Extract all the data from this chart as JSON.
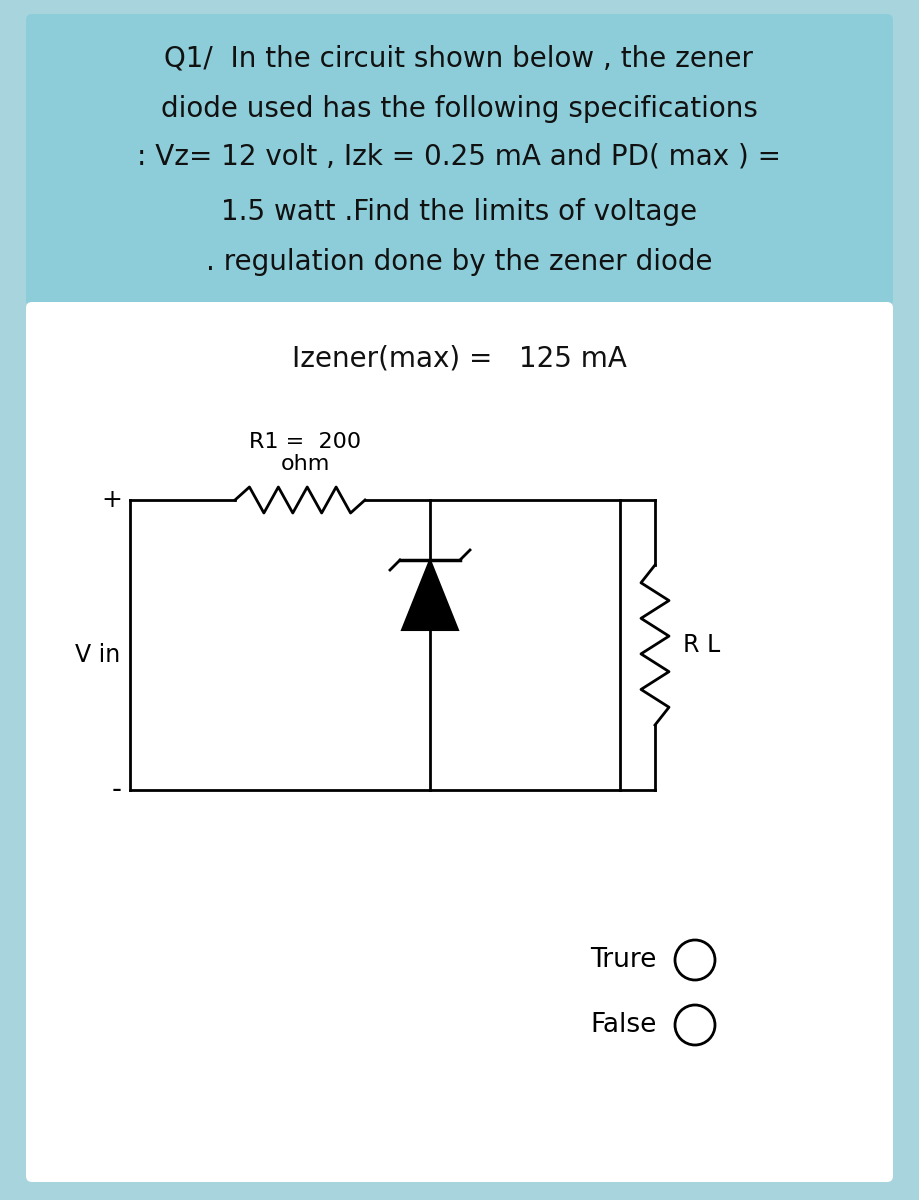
{
  "bg_color": "#ffffff",
  "header_bg": "#8dcdd9",
  "outer_bg": "#a8d4de",
  "header_text_lines": [
    "Q1/  In the circuit shown below , the zener",
    "diode used has the following specifications",
    ": Vz= 12 volt , Izk = 0.25 mA and PD( max ) =",
    "1.5 watt .Find the limits of voltage",
    ". regulation done by the zener diode"
  ],
  "izener_label": "Izener(max) =   125 mA",
  "r1_label_line1": "R1 =  200",
  "r1_label_line2": "ohm",
  "vin_label": "V in",
  "rl_label": "R L",
  "true_label": "Trure",
  "false_label": "False",
  "header_fontsize": 20,
  "body_fontsize": 19,
  "circuit_fontsize": 16,
  "plus_label": "+",
  "minus_label": "-"
}
